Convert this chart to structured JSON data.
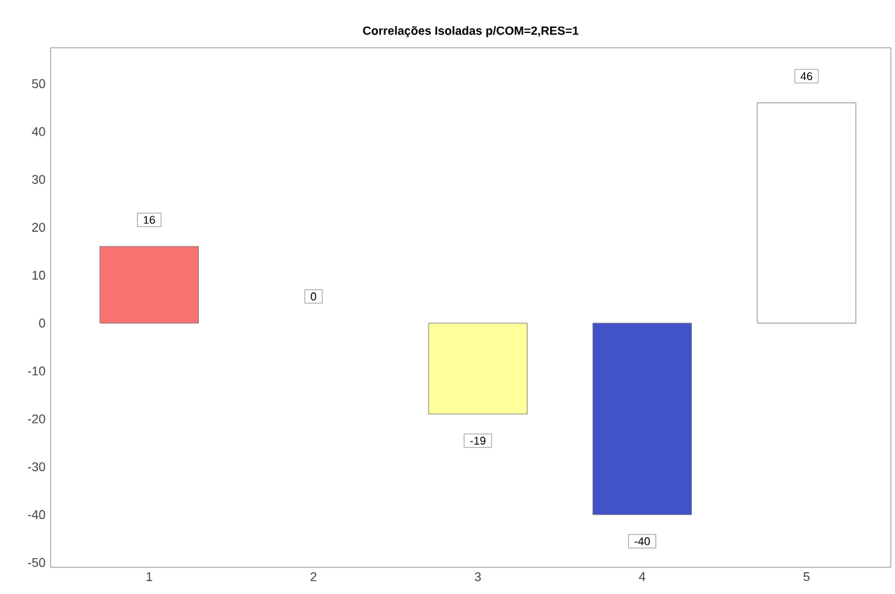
{
  "chart_data": {
    "type": "bar",
    "title": "Correlações Isoladas p/COM=2,RES=1",
    "categories": [
      "1",
      "2",
      "3",
      "4",
      "5"
    ],
    "values": [
      16,
      0,
      -19,
      -40,
      46
    ],
    "colors": [
      "#f87272",
      "#e4fbfb",
      "#ffff9c",
      "#4252c8",
      "#ffffff"
    ],
    "ylim": [
      -51,
      57.5
    ],
    "yticks": [
      -50,
      -40,
      -30,
      -20,
      -10,
      0,
      10,
      20,
      30,
      40,
      50
    ],
    "data_labels": true,
    "grid": false
  }
}
